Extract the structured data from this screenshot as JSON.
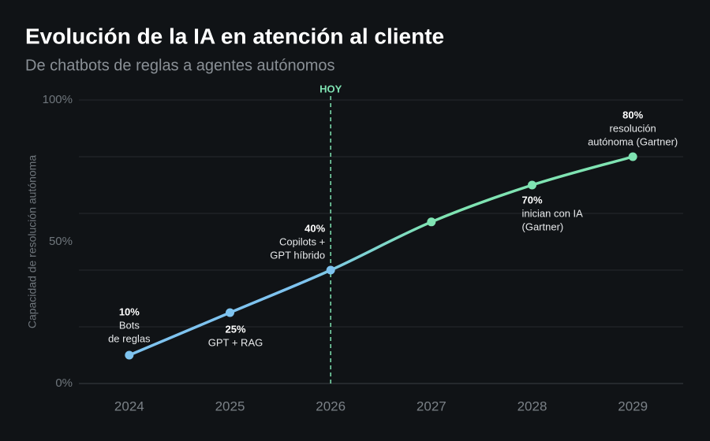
{
  "chart_data": {
    "type": "line",
    "title": "Evolución de la IA en atención al cliente",
    "subtitle": "De chatbots de reglas a agentes autónomos",
    "y_label": "Capacidad de resolución autónoma",
    "categories": [
      "2024",
      "2025",
      "2026",
      "2027",
      "2028",
      "2029"
    ],
    "series": [
      {
        "name": "Capacidad de resolución autónoma",
        "color": "#7ec3ef",
        "color_end": "#7fe3b2",
        "values": [
          10,
          25,
          40,
          57,
          70,
          80
        ],
        "value_labels": [
          "10%",
          "25%",
          "40%",
          null,
          "70%",
          "80%"
        ],
        "notes": [
          [
            "Bots",
            "de reglas"
          ],
          [
            "GPT + RAG"
          ],
          [
            "Copilots +",
            "GPT híbrido"
          ],
          null,
          [
            "inician con IA",
            "(Gartner)"
          ],
          [
            "resolución",
            "autónoma (Gartner)"
          ]
        ]
      }
    ],
    "ylim": [
      0,
      100
    ],
    "yticks": [
      {
        "value": 0,
        "label": "0%"
      },
      {
        "value": 50,
        "label": "50%"
      },
      {
        "value": 100,
        "label": "100%"
      }
    ],
    "grid_values": [
      0,
      20,
      40,
      60,
      80,
      100
    ],
    "grid": true,
    "reference_line": {
      "x": "2026",
      "label": "HOY",
      "color": "#7fe3b2"
    }
  }
}
